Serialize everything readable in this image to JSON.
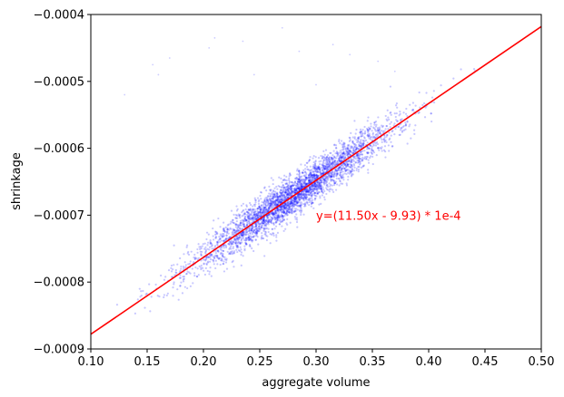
{
  "chart_data": {
    "type": "scatter",
    "title": "",
    "xlabel": "aggregate volume",
    "ylabel": "shrinkage",
    "xlim": [
      0.1,
      0.5
    ],
    "ylim": [
      -0.0009,
      -0.0004
    ],
    "xticks": [
      0.1,
      0.15,
      0.2,
      0.25,
      0.3,
      0.35,
      0.4,
      0.45,
      0.5
    ],
    "xtick_labels": [
      "0.10",
      "0.15",
      "0.20",
      "0.25",
      "0.30",
      "0.35",
      "0.40",
      "0.45",
      "0.50"
    ],
    "yticks": [
      -0.0009,
      -0.0008,
      -0.0007,
      -0.0006,
      -0.0005,
      -0.0004
    ],
    "ytick_labels": [
      "−0.0009",
      "−0.0008",
      "−0.0007",
      "−0.0006",
      "−0.0005",
      "−0.0004"
    ],
    "grid": false,
    "legend": "none",
    "scatter_color": "#0000ff",
    "fit_color": "#ff0000",
    "scatter_cloud": {
      "x_range": [
        0.12,
        0.45
      ],
      "x_center": 0.28,
      "slope": 0.00115,
      "intercept": -0.000993,
      "residual_sd": 1.5e-05,
      "outliers": [
        [
          0.13,
          -0.00052
        ],
        [
          0.155,
          -0.000475
        ],
        [
          0.16,
          -0.00049
        ],
        [
          0.17,
          -0.000465
        ],
        [
          0.205,
          -0.00045
        ],
        [
          0.21,
          -0.000435
        ],
        [
          0.235,
          -0.00044
        ],
        [
          0.27,
          -0.00042
        ],
        [
          0.285,
          -0.000455
        ],
        [
          0.315,
          -0.000445
        ],
        [
          0.33,
          -0.00046
        ],
        [
          0.355,
          -0.00047
        ],
        [
          0.37,
          -0.000485
        ],
        [
          0.245,
          -0.00049
        ],
        [
          0.3,
          -0.000505
        ]
      ]
    },
    "fit_line": {
      "slope": 0.00115,
      "intercept": -0.000993,
      "label": "y=(11.50x - 9.93) * 1e-4"
    },
    "annotation": {
      "text": "y=(11.50x - 9.93) * 1e-4",
      "x": 0.3,
      "y": -0.0007
    }
  }
}
